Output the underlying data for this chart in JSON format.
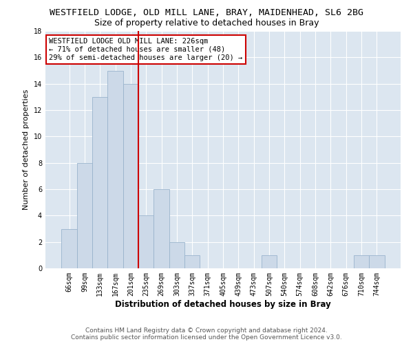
{
  "title": "WESTFIELD LODGE, OLD MILL LANE, BRAY, MAIDENHEAD, SL6 2BG",
  "subtitle": "Size of property relative to detached houses in Bray",
  "xlabel": "Distribution of detached houses by size in Bray",
  "ylabel": "Number of detached properties",
  "categories": [
    "66sqm",
    "99sqm",
    "133sqm",
    "167sqm",
    "201sqm",
    "235sqm",
    "269sqm",
    "303sqm",
    "337sqm",
    "371sqm",
    "405sqm",
    "439sqm",
    "473sqm",
    "507sqm",
    "540sqm",
    "574sqm",
    "608sqm",
    "642sqm",
    "676sqm",
    "710sqm",
    "744sqm"
  ],
  "values": [
    3,
    8,
    13,
    15,
    14,
    4,
    6,
    2,
    1,
    0,
    0,
    0,
    0,
    1,
    0,
    0,
    0,
    0,
    0,
    1,
    1
  ],
  "bar_color": "#ccd9e8",
  "bar_edgecolor": "#99b3cc",
  "vline_color": "#cc0000",
  "annotation_text": "WESTFIELD LODGE OLD MILL LANE: 226sqm\n← 71% of detached houses are smaller (48)\n29% of semi-detached houses are larger (20) →",
  "annotation_box_color": "#ffffff",
  "annotation_box_edgecolor": "#cc0000",
  "ylim": [
    0,
    18
  ],
  "yticks": [
    0,
    2,
    4,
    6,
    8,
    10,
    12,
    14,
    16,
    18
  ],
  "background_color": "#dce6f0",
  "grid_color": "#ffffff",
  "footer_text": "Contains HM Land Registry data © Crown copyright and database right 2024.\nContains public sector information licensed under the Open Government Licence v3.0.",
  "title_fontsize": 9.5,
  "subtitle_fontsize": 9,
  "xlabel_fontsize": 8.5,
  "ylabel_fontsize": 8,
  "tick_fontsize": 7,
  "footer_fontsize": 6.5,
  "annotation_fontsize": 7.5
}
